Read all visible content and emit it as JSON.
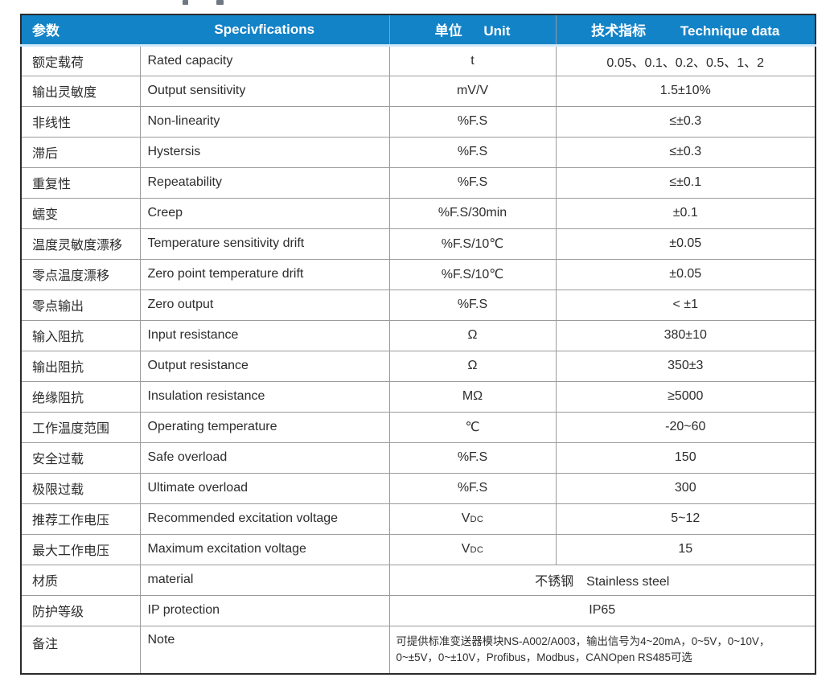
{
  "colors": {
    "header_bg": "#1383c7",
    "header_text": "#ffffff",
    "border_outer": "#2b2b2b",
    "border_inner": "#9b9b9b",
    "body_text": "#2d2d2d",
    "header_strip": "#cfe8f8"
  },
  "header": {
    "col1": "参数",
    "col2": "Specivfications",
    "col3_zh": "单位",
    "col3_en": "Unit",
    "col4_zh": "技术指标",
    "col4_en": "Technique data"
  },
  "rows": [
    {
      "param": "额定载荷",
      "spec": "Rated capacity",
      "unit": "t",
      "value": "0.05、0.1、0.2、0.5、1、2"
    },
    {
      "param": "输出灵敏度",
      "spec": "Output sensitivity",
      "unit": "mV/V",
      "value": "1.5±10%"
    },
    {
      "param": "非线性",
      "spec": "Non-linearity",
      "unit": "%F.S",
      "value": "≤±0.3"
    },
    {
      "param": "滞后",
      "spec": "Hystersis",
      "unit": "%F.S",
      "value": "≤±0.3"
    },
    {
      "param": "重复性",
      "spec": "Repeatability",
      "unit": "%F.S",
      "value": "≤±0.1"
    },
    {
      "param": "蠕变",
      "spec": "Creep",
      "unit": "%F.S/30min",
      "value": "±0.1"
    },
    {
      "param": "温度灵敏度漂移",
      "spec": "Temperature sensitivity drift",
      "unit": "%F.S/10℃",
      "value": "±0.05"
    },
    {
      "param": "零点温度漂移",
      "spec": "Zero point temperature drift",
      "unit": "%F.S/10℃",
      "value": "±0.05"
    },
    {
      "param": "零点输出",
      "spec": "Zero output",
      "unit": "%F.S",
      "value": "< ±1"
    },
    {
      "param": "输入阻抗",
      "spec": "Input resistance",
      "unit": "Ω",
      "value": "380±10"
    },
    {
      "param": "输出阻抗",
      "spec": "Output resistance",
      "unit": "Ω",
      "value": "350±3"
    },
    {
      "param": "绝缘阻抗",
      "spec": "Insulation resistance",
      "unit": "MΩ",
      "value": "≥5000"
    },
    {
      "param": "工作温度范围",
      "spec": "Operating temperature",
      "unit": "℃",
      "value": "-20~60"
    },
    {
      "param": "安全过载",
      "spec": "Safe overload",
      "unit": "%F.S",
      "value": "150"
    },
    {
      "param": "极限过载",
      "spec": "Ultimate overload",
      "unit": "%F.S",
      "value": "300"
    },
    {
      "param": "推荐工作电压",
      "spec": "Recommended excitation voltage",
      "unit": "VDC",
      "value": "5~12"
    },
    {
      "param": "最大工作电压",
      "spec": "Maximum excitation voltage",
      "unit": "VDC",
      "value": "15"
    },
    {
      "param": "材质",
      "spec": "material",
      "merged": "不锈钢　Stainless steel"
    },
    {
      "param": "防护等级",
      "spec": "IP protection",
      "merged": "IP65"
    },
    {
      "param": "备注",
      "spec": "Note",
      "kind": "note",
      "merged": "可提供标准变送器模块NS-A002/A003，输出信号为4~20mA，0~5V，0~10V，0~±5V，0~±10V，Profibus，Modbus，CANOpen RS485可选"
    }
  ]
}
